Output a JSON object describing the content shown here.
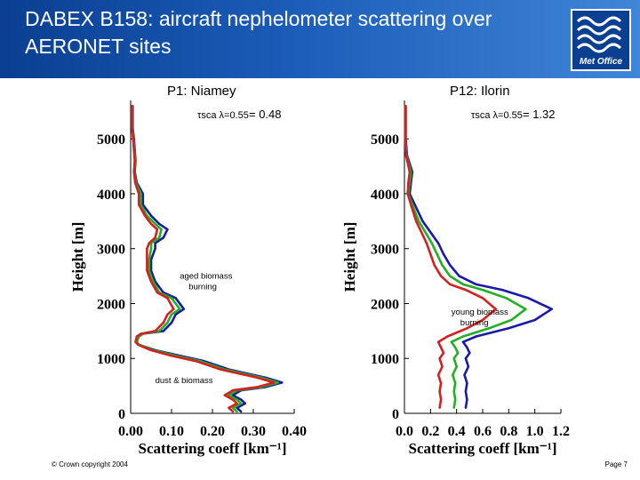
{
  "header": {
    "title": "DABEX B158: aircraft nephelometer scattering over AERONET sites",
    "logo_text": "Met Office",
    "bg_color": "#1b5cb8"
  },
  "footer": {
    "copyright": "© Crown copyright 2004",
    "page": "Page 7"
  },
  "chart_data": [
    {
      "type": "line",
      "panel_title": "P1: Niamey",
      "tau_label": "τsca λ=0.55",
      "tau_value": "= 0.48",
      "xlabel": "Scattering coeff [km⁻¹]",
      "ylabel": "Height [m]",
      "xlim": [
        0.0,
        0.4
      ],
      "ylim": [
        0,
        5700
      ],
      "xticks": [
        "0.00",
        "0.10",
        "0.20",
        "0.30",
        "0.40"
      ],
      "yticks": [
        "0",
        "1000",
        "2000",
        "3000",
        "4000",
        "5000"
      ],
      "annotations": [
        {
          "text": [
            "aged biomass",
            "burning"
          ],
          "x": 0.12,
          "y": 2450
        },
        {
          "text": [
            "dust & biomass"
          ],
          "x": 0.06,
          "y": 550
        }
      ],
      "series": [
        {
          "color": "#1a1aa8",
          "points": [
            [
              0.005,
              5600
            ],
            [
              0.005,
              5200
            ],
            [
              0.008,
              5000
            ],
            [
              0.01,
              4800
            ],
            [
              0.012,
              4600
            ],
            [
              0.01,
              4400
            ],
            [
              0.015,
              4200
            ],
            [
              0.03,
              4000
            ],
            [
              0.03,
              3800
            ],
            [
              0.05,
              3600
            ],
            [
              0.07,
              3450
            ],
            [
              0.09,
              3350
            ],
            [
              0.08,
              3200
            ],
            [
              0.06,
              3100
            ],
            [
              0.06,
              3000
            ],
            [
              0.05,
              2800
            ],
            [
              0.05,
              2600
            ],
            [
              0.06,
              2400
            ],
            [
              0.08,
              2200
            ],
            [
              0.11,
              2100
            ],
            [
              0.13,
              1900
            ],
            [
              0.11,
              1800
            ],
            [
              0.1,
              1650
            ],
            [
              0.08,
              1500
            ],
            [
              0.03,
              1450
            ],
            [
              0.02,
              1400
            ],
            [
              0.015,
              1300
            ],
            [
              0.02,
              1250
            ],
            [
              0.06,
              1150
            ],
            [
              0.12,
              1050
            ],
            [
              0.18,
              950
            ],
            [
              0.24,
              800
            ],
            [
              0.33,
              650
            ],
            [
              0.37,
              560
            ],
            [
              0.33,
              480
            ],
            [
              0.27,
              420
            ],
            [
              0.25,
              330
            ],
            [
              0.27,
              250
            ],
            [
              0.28,
              180
            ],
            [
              0.26,
              100
            ],
            [
              0.27,
              30
            ]
          ]
        },
        {
          "color": "#22b022",
          "points": [
            [
              0.004,
              5600
            ],
            [
              0.004,
              5200
            ],
            [
              0.007,
              5000
            ],
            [
              0.009,
              4800
            ],
            [
              0.011,
              4600
            ],
            [
              0.009,
              4400
            ],
            [
              0.013,
              4200
            ],
            [
              0.025,
              4000
            ],
            [
              0.025,
              3800
            ],
            [
              0.04,
              3600
            ],
            [
              0.06,
              3450
            ],
            [
              0.075,
              3350
            ],
            [
              0.07,
              3200
            ],
            [
              0.05,
              3100
            ],
            [
              0.05,
              3000
            ],
            [
              0.045,
              2800
            ],
            [
              0.045,
              2600
            ],
            [
              0.055,
              2400
            ],
            [
              0.07,
              2200
            ],
            [
              0.1,
              2100
            ],
            [
              0.12,
              1900
            ],
            [
              0.1,
              1800
            ],
            [
              0.09,
              1650
            ],
            [
              0.07,
              1500
            ],
            [
              0.03,
              1450
            ],
            [
              0.02,
              1400
            ],
            [
              0.015,
              1300
            ],
            [
              0.02,
              1250
            ],
            [
              0.055,
              1150
            ],
            [
              0.11,
              1050
            ],
            [
              0.17,
              950
            ],
            [
              0.23,
              800
            ],
            [
              0.32,
              650
            ],
            [
              0.36,
              560
            ],
            [
              0.32,
              480
            ],
            [
              0.26,
              420
            ],
            [
              0.24,
              330
            ],
            [
              0.26,
              250
            ],
            [
              0.27,
              180
            ],
            [
              0.25,
              100
            ],
            [
              0.26,
              30
            ]
          ]
        },
        {
          "color": "#d42020",
          "points": [
            [
              0.003,
              5600
            ],
            [
              0.003,
              5200
            ],
            [
              0.006,
              5000
            ],
            [
              0.008,
              4800
            ],
            [
              0.01,
              4600
            ],
            [
              0.008,
              4400
            ],
            [
              0.011,
              4200
            ],
            [
              0.02,
              4000
            ],
            [
              0.02,
              3800
            ],
            [
              0.035,
              3600
            ],
            [
              0.05,
              3450
            ],
            [
              0.065,
              3350
            ],
            [
              0.06,
              3200
            ],
            [
              0.045,
              3100
            ],
            [
              0.04,
              3000
            ],
            [
              0.04,
              2800
            ],
            [
              0.04,
              2600
            ],
            [
              0.05,
              2400
            ],
            [
              0.065,
              2200
            ],
            [
              0.09,
              2100
            ],
            [
              0.105,
              1900
            ],
            [
              0.09,
              1800
            ],
            [
              0.08,
              1650
            ],
            [
              0.06,
              1500
            ],
            [
              0.025,
              1450
            ],
            [
              0.015,
              1400
            ],
            [
              0.012,
              1300
            ],
            [
              0.018,
              1250
            ],
            [
              0.05,
              1150
            ],
            [
              0.1,
              1050
            ],
            [
              0.16,
              950
            ],
            [
              0.22,
              800
            ],
            [
              0.31,
              650
            ],
            [
              0.35,
              560
            ],
            [
              0.31,
              480
            ],
            [
              0.25,
              420
            ],
            [
              0.23,
              330
            ],
            [
              0.25,
              250
            ],
            [
              0.26,
              180
            ],
            [
              0.24,
              100
            ],
            [
              0.25,
              30
            ]
          ]
        }
      ]
    },
    {
      "type": "line",
      "panel_title": "P12: Ilorin",
      "tau_label": "τsca λ=0.55",
      "tau_value": "= 1.32",
      "xlabel": "Scattering coeff [km⁻¹]",
      "ylabel": "Height [m]",
      "xlim": [
        0.0,
        1.2
      ],
      "ylim": [
        0,
        5700
      ],
      "xticks": [
        "0.0",
        "0.2",
        "0.4",
        "0.6",
        "0.8",
        "1.0",
        "1.2"
      ],
      "yticks": [
        "0",
        "1000",
        "2000",
        "3000",
        "4000",
        "5000"
      ],
      "annotations": [
        {
          "text": [
            "young biomass",
            "burning"
          ],
          "x": 0.36,
          "y": 1800
        }
      ],
      "series": [
        {
          "color": "#1a1aa8",
          "points": [
            [
              0.01,
              5600
            ],
            [
              0.01,
              5000
            ],
            [
              0.02,
              4700
            ],
            [
              0.06,
              4400
            ],
            [
              0.05,
              4200
            ],
            [
              0.04,
              4000
            ],
            [
              0.08,
              3800
            ],
            [
              0.14,
              3500
            ],
            [
              0.2,
              3300
            ],
            [
              0.26,
              3100
            ],
            [
              0.3,
              2900
            ],
            [
              0.35,
              2700
            ],
            [
              0.42,
              2500
            ],
            [
              0.55,
              2350
            ],
            [
              0.75,
              2250
            ],
            [
              0.95,
              2100
            ],
            [
              1.13,
              1900
            ],
            [
              1.0,
              1700
            ],
            [
              0.8,
              1550
            ],
            [
              0.55,
              1400
            ],
            [
              0.45,
              1300
            ],
            [
              0.48,
              1200
            ],
            [
              0.5,
              1100
            ],
            [
              0.47,
              1000
            ],
            [
              0.49,
              850
            ],
            [
              0.46,
              700
            ],
            [
              0.48,
              550
            ],
            [
              0.47,
              400
            ],
            [
              0.48,
              250
            ],
            [
              0.47,
              100
            ]
          ]
        },
        {
          "color": "#22b022",
          "points": [
            [
              0.008,
              5600
            ],
            [
              0.008,
              5000
            ],
            [
              0.015,
              4700
            ],
            [
              0.05,
              4400
            ],
            [
              0.04,
              4200
            ],
            [
              0.03,
              4000
            ],
            [
              0.06,
              3800
            ],
            [
              0.11,
              3500
            ],
            [
              0.16,
              3300
            ],
            [
              0.21,
              3100
            ],
            [
              0.25,
              2900
            ],
            [
              0.29,
              2700
            ],
            [
              0.35,
              2500
            ],
            [
              0.45,
              2350
            ],
            [
              0.6,
              2250
            ],
            [
              0.78,
              2100
            ],
            [
              0.93,
              1900
            ],
            [
              0.82,
              1700
            ],
            [
              0.65,
              1550
            ],
            [
              0.45,
              1400
            ],
            [
              0.36,
              1300
            ],
            [
              0.39,
              1200
            ],
            [
              0.41,
              1100
            ],
            [
              0.38,
              1000
            ],
            [
              0.4,
              850
            ],
            [
              0.37,
              700
            ],
            [
              0.39,
              550
            ],
            [
              0.38,
              400
            ],
            [
              0.39,
              250
            ],
            [
              0.38,
              100
            ]
          ]
        },
        {
          "color": "#d42020",
          "points": [
            [
              0.006,
              5600
            ],
            [
              0.006,
              5000
            ],
            [
              0.012,
              4700
            ],
            [
              0.04,
              4400
            ],
            [
              0.03,
              4200
            ],
            [
              0.025,
              4000
            ],
            [
              0.05,
              3800
            ],
            [
              0.09,
              3500
            ],
            [
              0.13,
              3300
            ],
            [
              0.17,
              3100
            ],
            [
              0.2,
              2900
            ],
            [
              0.23,
              2700
            ],
            [
              0.28,
              2500
            ],
            [
              0.35,
              2350
            ],
            [
              0.47,
              2250
            ],
            [
              0.6,
              2100
            ],
            [
              0.7,
              1900
            ],
            [
              0.6,
              1700
            ],
            [
              0.48,
              1550
            ],
            [
              0.33,
              1400
            ],
            [
              0.26,
              1300
            ],
            [
              0.28,
              1200
            ],
            [
              0.3,
              1100
            ],
            [
              0.27,
              1000
            ],
            [
              0.29,
              850
            ],
            [
              0.26,
              700
            ],
            [
              0.28,
              550
            ],
            [
              0.27,
              400
            ],
            [
              0.28,
              250
            ],
            [
              0.27,
              100
            ]
          ]
        }
      ]
    }
  ]
}
